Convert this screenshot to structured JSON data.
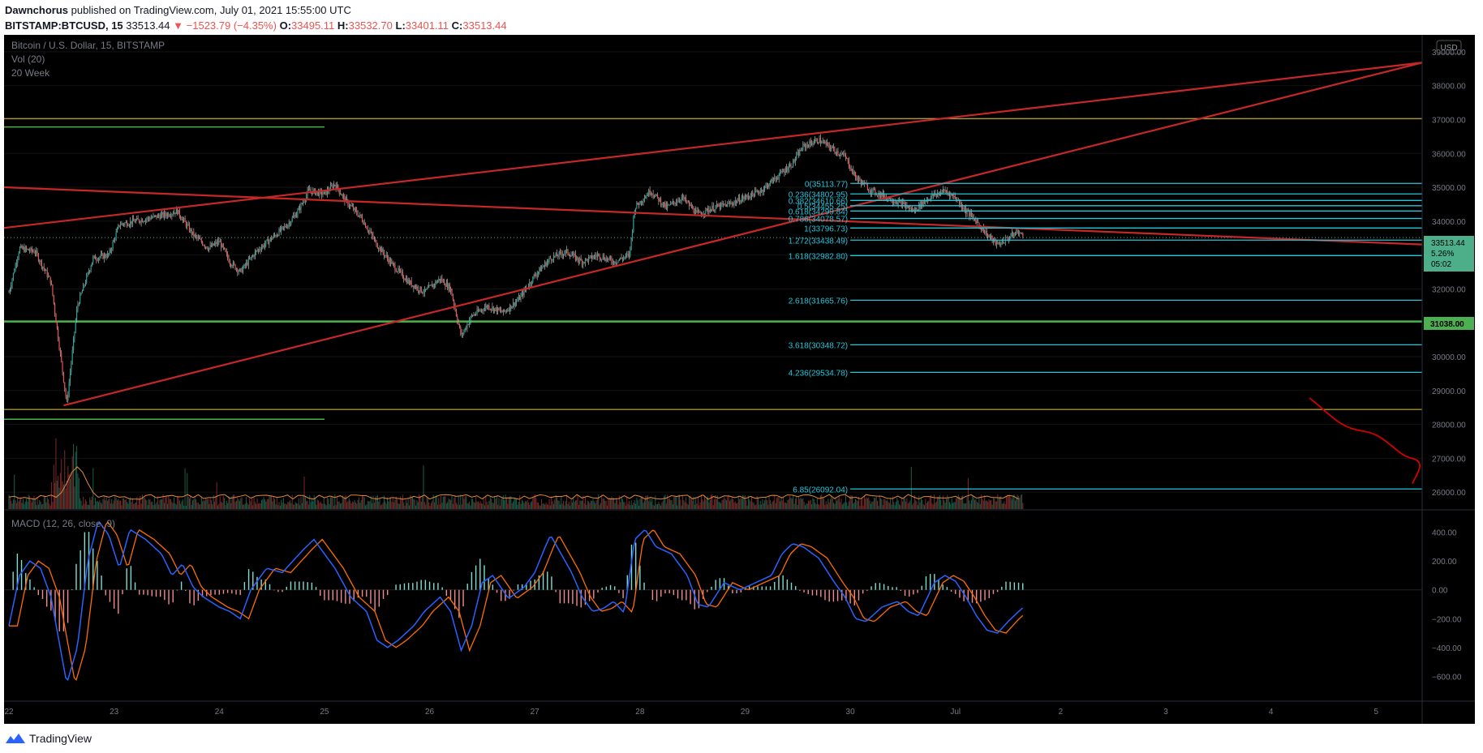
{
  "header": {
    "author": "Dawnchorus",
    "published_text": "published on TradingView.com, July 01, 2021 15:55:00 UTC",
    "symbol": "BITSTAMP:BTCUSD, 15",
    "last": "33513.44",
    "change": "−1523.79 (−4.35%)",
    "o_label": "O:",
    "o_value": "33495.11",
    "h_label": "H:",
    "h_value": "33532.70",
    "l_label": "L:",
    "l_value": "33401.11",
    "c_label": "C:",
    "c_value": "33513.44"
  },
  "legend": {
    "title": "Bitcoin / U.S. Dollar, 15, BITSTAMP",
    "vol": "Vol (20)",
    "ma": "20 Week",
    "macd": "MACD (12, 26, close, 9)"
  },
  "currency_badge": "USD",
  "price_tag": {
    "value": "33513.44",
    "change": "5.26%",
    "countdown": "05:02"
  },
  "level_tag": "31038.00",
  "footer": {
    "brand": "TradingView"
  },
  "colors": {
    "background": "#000000",
    "up_candle": "#26a69a",
    "down_candle": "#ef5350",
    "trendline": "#c62828",
    "fib": "#26c6da",
    "green_level": "#4caf50",
    "yellow_level": "#e6c84a",
    "macd_line": "#2962ff",
    "signal_line": "#ff6d00"
  },
  "chart_data": {
    "type": "candlestick",
    "x_ticks": [
      "22",
      "23",
      "24",
      "25",
      "26",
      "27",
      "28",
      "29",
      "30",
      "Jul",
      "2",
      "3",
      "4",
      "5"
    ],
    "price_ticks": [
      "39000.00",
      "38000.00",
      "37000.00",
      "36000.00",
      "35000.00",
      "34000.00",
      "33000.00",
      "32000.00",
      "31000.00",
      "30000.00",
      "29000.00",
      "28000.00",
      "27000.00",
      "26000.00"
    ],
    "price_ylim": [
      25500,
      39500
    ],
    "price_path": [
      [
        22.0,
        31900
      ],
      [
        22.1,
        33200
      ],
      [
        22.25,
        33100
      ],
      [
        22.4,
        32200
      ],
      [
        22.55,
        28600
      ],
      [
        22.65,
        31500
      ],
      [
        22.8,
        32900
      ],
      [
        22.95,
        33000
      ],
      [
        23.05,
        33900
      ],
      [
        23.2,
        34000
      ],
      [
        23.35,
        34100
      ],
      [
        23.5,
        34200
      ],
      [
        23.6,
        34300
      ],
      [
        23.75,
        33600
      ],
      [
        23.9,
        33200
      ],
      [
        24.0,
        33400
      ],
      [
        24.1,
        32800
      ],
      [
        24.2,
        32500
      ],
      [
        24.35,
        33100
      ],
      [
        24.5,
        33500
      ],
      [
        24.65,
        33900
      ],
      [
        24.75,
        34300
      ],
      [
        24.85,
        34900
      ],
      [
        25.0,
        34800
      ],
      [
        25.1,
        35100
      ],
      [
        25.2,
        34600
      ],
      [
        25.35,
        34100
      ],
      [
        25.5,
        33300
      ],
      [
        25.65,
        32700
      ],
      [
        25.8,
        32200
      ],
      [
        25.95,
        31900
      ],
      [
        26.1,
        32300
      ],
      [
        26.2,
        32000
      ],
      [
        26.3,
        30600
      ],
      [
        26.4,
        31200
      ],
      [
        26.55,
        31500
      ],
      [
        26.7,
        31300
      ],
      [
        26.85,
        31700
      ],
      [
        27.0,
        32400
      ],
      [
        27.15,
        32900
      ],
      [
        27.3,
        33100
      ],
      [
        27.45,
        32800
      ],
      [
        27.6,
        33000
      ],
      [
        27.75,
        32800
      ],
      [
        27.9,
        33000
      ],
      [
        27.95,
        34400
      ],
      [
        28.1,
        34900
      ],
      [
        28.25,
        34400
      ],
      [
        28.4,
        34700
      ],
      [
        28.55,
        34200
      ],
      [
        28.7,
        34400
      ],
      [
        28.85,
        34500
      ],
      [
        29.0,
        34700
      ],
      [
        29.15,
        34900
      ],
      [
        29.3,
        35300
      ],
      [
        29.45,
        35700
      ],
      [
        29.55,
        36200
      ],
      [
        29.7,
        36400
      ],
      [
        29.85,
        36100
      ],
      [
        29.95,
        35900
      ],
      [
        30.05,
        35300
      ],
      [
        30.2,
        34900
      ],
      [
        30.35,
        34700
      ],
      [
        30.5,
        34500
      ],
      [
        30.6,
        34300
      ],
      [
        30.75,
        34700
      ],
      [
        30.9,
        34900
      ],
      [
        31.0,
        34700
      ],
      [
        31.1,
        34300
      ],
      [
        31.2,
        34000
      ],
      [
        31.3,
        33600
      ],
      [
        31.4,
        33300
      ],
      [
        31.5,
        33500
      ],
      [
        31.6,
        33700
      ],
      [
        31.65,
        33500
      ]
    ],
    "volume_ylim": [
      0,
      3000
    ],
    "volume_baseline_ratio": 0.22,
    "macd_ticks": [
      "400.00",
      "200.00",
      "0.00",
      "−200.00",
      "−400.00",
      "−600.00"
    ],
    "macd_ylim": [
      -750,
      550
    ],
    "macd": [
      [
        22.0,
        -250
      ],
      [
        22.1,
        100
      ],
      [
        22.2,
        200
      ],
      [
        22.3,
        150
      ],
      [
        22.4,
        -50
      ],
      [
        22.55,
        -650
      ],
      [
        22.65,
        -400
      ],
      [
        22.75,
        200
      ],
      [
        22.85,
        480
      ],
      [
        22.95,
        380
      ],
      [
        23.05,
        150
      ],
      [
        23.15,
        420
      ],
      [
        23.3,
        350
      ],
      [
        23.45,
        250
      ],
      [
        23.55,
        100
      ],
      [
        23.65,
        180
      ],
      [
        23.75,
        20
      ],
      [
        23.85,
        -50
      ],
      [
        24.0,
        -120
      ],
      [
        24.1,
        -150
      ],
      [
        24.2,
        -200
      ],
      [
        24.3,
        0
      ],
      [
        24.45,
        150
      ],
      [
        24.6,
        120
      ],
      [
        24.7,
        200
      ],
      [
        24.8,
        280
      ],
      [
        24.9,
        350
      ],
      [
        25.0,
        250
      ],
      [
        25.1,
        150
      ],
      [
        25.25,
        -50
      ],
      [
        25.4,
        -150
      ],
      [
        25.5,
        -350
      ],
      [
        25.6,
        -400
      ],
      [
        25.7,
        -350
      ],
      [
        25.85,
        -250
      ],
      [
        25.95,
        -150
      ],
      [
        26.1,
        -50
      ],
      [
        26.2,
        -150
      ],
      [
        26.3,
        -420
      ],
      [
        26.4,
        -250
      ],
      [
        26.5,
        50
      ],
      [
        26.6,
        100
      ],
      [
        26.75,
        -60
      ],
      [
        26.9,
        20
      ],
      [
        27.0,
        120
      ],
      [
        27.1,
        300
      ],
      [
        27.15,
        380
      ],
      [
        27.25,
        250
      ],
      [
        27.35,
        120
      ],
      [
        27.45,
        -50
      ],
      [
        27.55,
        -150
      ],
      [
        27.65,
        -130
      ],
      [
        27.75,
        -80
      ],
      [
        27.85,
        -160
      ],
      [
        27.95,
        350
      ],
      [
        28.05,
        420
      ],
      [
        28.15,
        300
      ],
      [
        28.3,
        250
      ],
      [
        28.45,
        100
      ],
      [
        28.55,
        -100
      ],
      [
        28.65,
        -120
      ],
      [
        28.8,
        50
      ],
      [
        28.95,
        0
      ],
      [
        29.1,
        50
      ],
      [
        29.25,
        100
      ],
      [
        29.35,
        250
      ],
      [
        29.45,
        320
      ],
      [
        29.55,
        300
      ],
      [
        29.7,
        220
      ],
      [
        29.85,
        50
      ],
      [
        29.95,
        -50
      ],
      [
        30.05,
        -200
      ],
      [
        30.15,
        -220
      ],
      [
        30.3,
        -120
      ],
      [
        30.45,
        -80
      ],
      [
        30.55,
        -150
      ],
      [
        30.65,
        -180
      ],
      [
        30.8,
        50
      ],
      [
        30.9,
        100
      ],
      [
        31.0,
        60
      ],
      [
        31.1,
        -50
      ],
      [
        31.2,
        -180
      ],
      [
        31.3,
        -280
      ],
      [
        31.4,
        -300
      ],
      [
        31.5,
        -220
      ],
      [
        31.6,
        -150
      ],
      [
        31.65,
        -120
      ]
    ]
  },
  "fib_levels": [
    {
      "label": "0(35113.77)",
      "price": 35113.77
    },
    {
      "label": "0.236(34802.95)",
      "price": 34802.95
    },
    {
      "label": "0.382(34610.66)",
      "price": 34610.66
    },
    {
      "label": "0.5(34455.25)",
      "price": 34455.25
    },
    {
      "label": "0.618(34299.84)",
      "price": 34299.84
    },
    {
      "label": "0.786(34078.57)",
      "price": 34078.57
    },
    {
      "label": "1(33796.73)",
      "price": 33796.73
    },
    {
      "label": "1.272(33438.49)",
      "price": 33438.49
    },
    {
      "label": "1.618(32982.80)",
      "price": 32982.8
    },
    {
      "label": "2.618(31665.76)",
      "price": 31665.76
    },
    {
      "label": "3.618(30348.72)",
      "price": 30348.72
    },
    {
      "label": "4.236(29534.78)",
      "price": 29534.78
    },
    {
      "label": "6.85(26092.04)",
      "price": 26092.04
    }
  ],
  "horizontal_levels": {
    "yellow": [
      37030,
      28440
    ],
    "green_main": 31038,
    "green_short": [
      36780,
      28150
    ]
  }
}
